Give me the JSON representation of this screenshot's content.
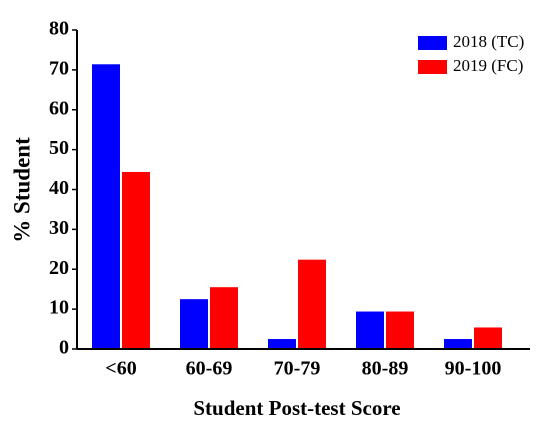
{
  "chart_data": {
    "type": "bar",
    "x_label": "Student Post-test Score",
    "y_label": "% Student",
    "categories": [
      "<60",
      "60-69",
      "70-79",
      "80-89",
      "90-100"
    ],
    "series": [
      {
        "name": "2018 (TC)",
        "color": "#0000ff",
        "values": [
          71.4,
          12.5,
          2.5,
          9.4,
          2.5
        ]
      },
      {
        "name": "2019 (FC)",
        "color": "#ff0000",
        "values": [
          44.4,
          15.5,
          22.4,
          9.4,
          5.4
        ]
      }
    ],
    "ylim": [
      0,
      80
    ],
    "yticks": [
      0,
      10,
      20,
      30,
      40,
      50,
      60,
      70,
      80
    ],
    "grid": false,
    "legend": "upper right"
  }
}
